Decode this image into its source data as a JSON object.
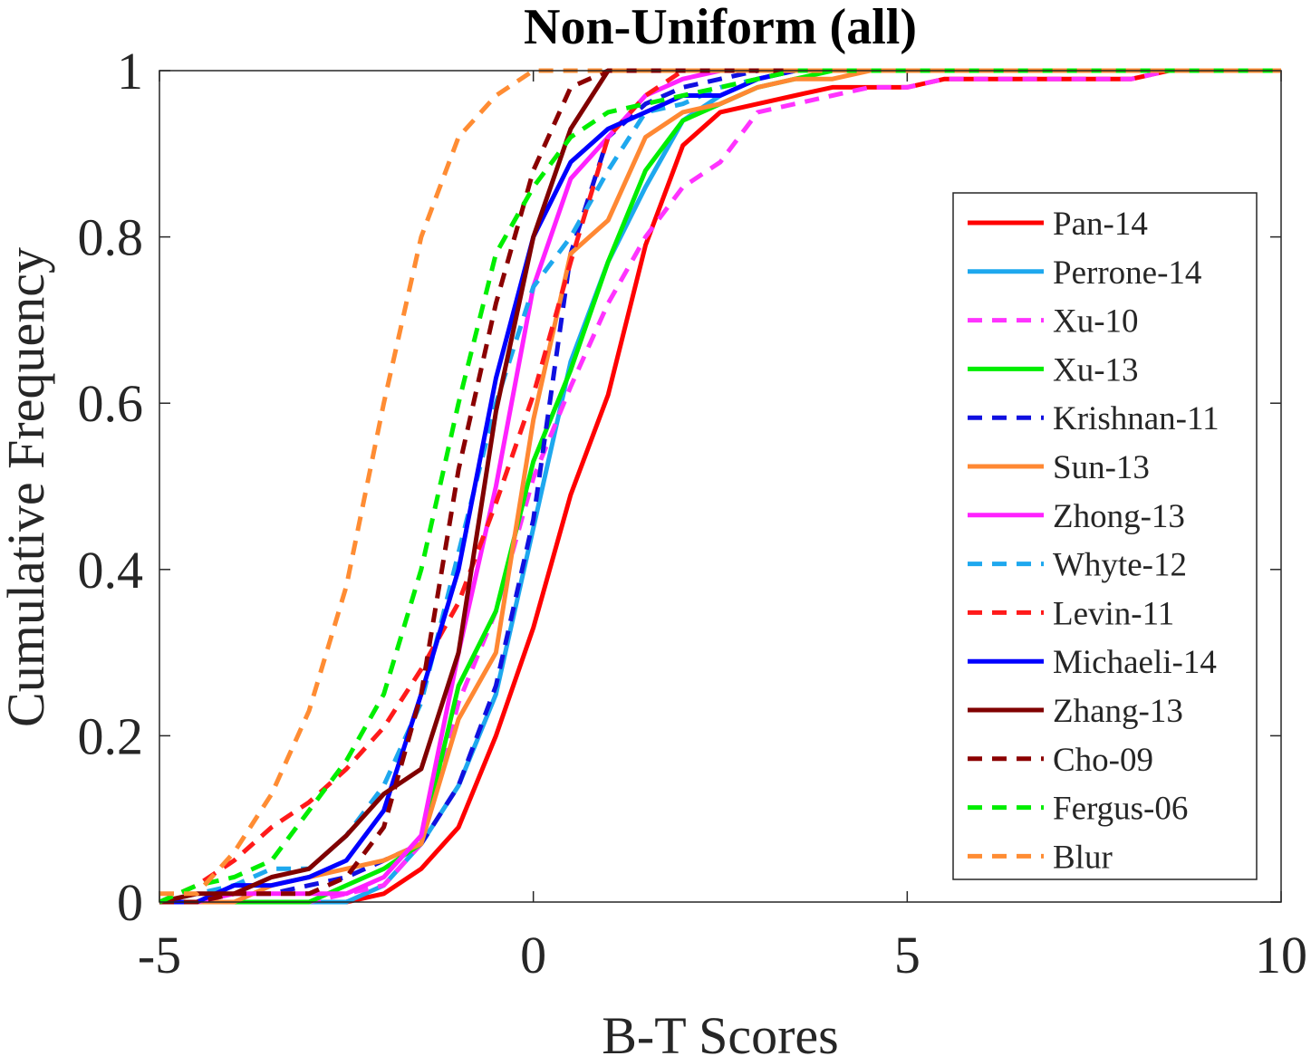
{
  "chart_data": {
    "type": "line",
    "title": "Non-Uniform (all)",
    "xlabel": "B-T Scores",
    "ylabel": "Cumulative Frequency",
    "xlim": [
      -5,
      10
    ],
    "ylim": [
      0,
      1
    ],
    "xticks": [
      -5,
      0,
      5,
      10
    ],
    "xtick_labels": [
      "-5",
      "0",
      "5",
      "10"
    ],
    "yticks": [
      0,
      0.2,
      0.4,
      0.6,
      0.8,
      1
    ],
    "ytick_labels": [
      "0",
      "0.2",
      "0.4",
      "0.6",
      "0.8",
      "1"
    ],
    "grid": false,
    "legend_position": "right",
    "series": [
      {
        "name": "Pan-14",
        "color": "#ff0000",
        "dash": "solid",
        "x": [
          -5,
          -4.5,
          -4,
          -3.5,
          -3,
          -2.5,
          -2,
          -1.5,
          -1,
          -0.5,
          0,
          0.5,
          1,
          1.5,
          2,
          2.5,
          3,
          3.5,
          4,
          4.5,
          5,
          5.5,
          6,
          6.5,
          7,
          7.5,
          8,
          8.5,
          9,
          10
        ],
        "y": [
          0,
          0,
          0,
          0,
          0,
          0,
          0.01,
          0.04,
          0.09,
          0.2,
          0.33,
          0.49,
          0.61,
          0.79,
          0.91,
          0.95,
          0.96,
          0.97,
          0.98,
          0.98,
          0.98,
          0.99,
          0.99,
          0.99,
          0.99,
          0.99,
          0.99,
          1,
          1,
          1
        ]
      },
      {
        "name": "Perrone-14",
        "color": "#1ea8ee",
        "dash": "solid",
        "x": [
          -5,
          -4.5,
          -4,
          -3.5,
          -3,
          -2.5,
          -2,
          -1.5,
          -1,
          -0.5,
          0,
          0.5,
          1,
          1.5,
          2,
          2.5,
          3,
          3.5,
          4,
          10
        ],
        "y": [
          0,
          0,
          0,
          0,
          0,
          0,
          0.02,
          0.07,
          0.14,
          0.25,
          0.45,
          0.65,
          0.77,
          0.86,
          0.94,
          0.97,
          0.99,
          1,
          1,
          1
        ]
      },
      {
        "name": "Xu-10",
        "color": "#ff33ff",
        "dash": "dashed",
        "x": [
          -5,
          -4.5,
          -4,
          -3.5,
          -3,
          -2.5,
          -2,
          -1.5,
          -1,
          -0.5,
          0,
          0.5,
          1,
          1.5,
          2,
          2.5,
          3,
          3.5,
          4,
          4.5,
          5,
          5.5,
          6,
          6.5,
          7,
          7.5,
          8,
          8.5,
          9,
          10
        ],
        "y": [
          0,
          0,
          0,
          0,
          0,
          0.01,
          0.02,
          0.07,
          0.24,
          0.35,
          0.51,
          0.62,
          0.72,
          0.8,
          0.86,
          0.89,
          0.95,
          0.96,
          0.97,
          0.98,
          0.98,
          0.99,
          0.99,
          0.99,
          0.99,
          0.99,
          0.99,
          1,
          1,
          1
        ]
      },
      {
        "name": "Xu-13",
        "color": "#00ee00",
        "dash": "solid",
        "x": [
          -5,
          -4.5,
          -4,
          -3.5,
          -3,
          -2.5,
          -2,
          -1.5,
          -1,
          -0.5,
          0,
          0.5,
          1,
          1.5,
          2,
          2.5,
          3,
          3.5,
          4,
          10
        ],
        "y": [
          0,
          0,
          0,
          0,
          0,
          0.02,
          0.04,
          0.07,
          0.26,
          0.35,
          0.53,
          0.64,
          0.77,
          0.88,
          0.94,
          0.96,
          0.98,
          0.99,
          1,
          1
        ]
      },
      {
        "name": "Krishnan-11",
        "color": "#1010e0",
        "dash": "dashed",
        "x": [
          -5,
          -4.5,
          -4,
          -3.5,
          -3,
          -2.5,
          -2,
          -1.5,
          -1,
          -0.5,
          0,
          0.5,
          1,
          1.5,
          2,
          2.5,
          3,
          3.5,
          10
        ],
        "y": [
          0,
          0,
          0.01,
          0.01,
          0.02,
          0.03,
          0.05,
          0.07,
          0.14,
          0.26,
          0.46,
          0.78,
          0.92,
          0.96,
          0.98,
          0.99,
          1,
          1,
          1
        ]
      },
      {
        "name": "Sun-13",
        "color": "#ff8833",
        "dash": "solid",
        "x": [
          -5,
          -4.5,
          -4,
          -3.5,
          -3,
          -2.5,
          -2,
          -1.5,
          -1,
          -0.5,
          0,
          0.5,
          1,
          1.5,
          2,
          2.5,
          3,
          3.5,
          4,
          4.5,
          5,
          10
        ],
        "y": [
          0,
          0,
          0,
          0.02,
          0.03,
          0.04,
          0.05,
          0.07,
          0.22,
          0.3,
          0.58,
          0.78,
          0.82,
          0.92,
          0.95,
          0.96,
          0.98,
          0.99,
          0.99,
          1,
          1,
          1
        ]
      },
      {
        "name": "Zhong-13",
        "color": "#ff22ff",
        "dash": "solid",
        "x": [
          -5,
          -4.5,
          -4,
          -3.5,
          -3,
          -2.5,
          -2,
          -1.5,
          -1,
          -0.5,
          0,
          0.5,
          1,
          1.5,
          2,
          2.5,
          3,
          10
        ],
        "y": [
          0,
          0,
          0.01,
          0.01,
          0.01,
          0.01,
          0.03,
          0.08,
          0.3,
          0.5,
          0.74,
          0.87,
          0.92,
          0.97,
          0.99,
          1,
          1,
          1
        ]
      },
      {
        "name": "Whyte-12",
        "color": "#1ea8ee",
        "dash": "dashed",
        "x": [
          -5,
          -4.5,
          -4,
          -3.5,
          -3,
          -2.5,
          -2,
          -1.5,
          -1,
          -0.5,
          0,
          0.5,
          1,
          1.5,
          2,
          2.5,
          3,
          3.5,
          10
        ],
        "y": [
          0,
          0.01,
          0.02,
          0.04,
          0.04,
          0.08,
          0.14,
          0.24,
          0.42,
          0.6,
          0.74,
          0.8,
          0.88,
          0.95,
          0.96,
          0.98,
          0.99,
          1,
          1
        ]
      },
      {
        "name": "Levin-11",
        "color": "#ff1a1a",
        "dash": "dashed",
        "x": [
          -5,
          -4.5,
          -4,
          -3.5,
          -3,
          -2.5,
          -2,
          -1.5,
          -1,
          -0.5,
          0,
          0.5,
          1,
          1.5,
          2,
          10
        ],
        "y": [
          0,
          0.02,
          0.05,
          0.09,
          0.12,
          0.16,
          0.21,
          0.28,
          0.36,
          0.48,
          0.61,
          0.77,
          0.92,
          0.97,
          1,
          1
        ]
      },
      {
        "name": "Michaeli-14",
        "color": "#0000ff",
        "dash": "solid",
        "x": [
          -5,
          -4.5,
          -4,
          -3.5,
          -3,
          -2.5,
          -2,
          -1.5,
          -1,
          -0.5,
          0,
          0.5,
          1,
          1.5,
          2,
          2.5,
          3,
          3.5,
          10
        ],
        "y": [
          0,
          0,
          0.02,
          0.02,
          0.03,
          0.05,
          0.11,
          0.25,
          0.4,
          0.63,
          0.8,
          0.89,
          0.93,
          0.95,
          0.97,
          0.97,
          0.99,
          1,
          1
        ]
      },
      {
        "name": "Zhang-13",
        "color": "#800000",
        "dash": "solid",
        "x": [
          -5,
          -4.5,
          -4,
          -3.5,
          -3,
          -2.5,
          -2,
          -1.5,
          -1,
          -0.5,
          0,
          0.5,
          1,
          10
        ],
        "y": [
          0,
          0.01,
          0.01,
          0.03,
          0.04,
          0.08,
          0.13,
          0.16,
          0.3,
          0.59,
          0.8,
          0.93,
          1,
          1
        ]
      },
      {
        "name": "Cho-09",
        "color": "#8b0000",
        "dash": "dashed",
        "x": [
          -5,
          -4.5,
          -4,
          -3.5,
          -3,
          -2.5,
          -2,
          -1.5,
          -1,
          -0.5,
          0,
          0.5,
          1,
          10
        ],
        "y": [
          0,
          0,
          0.01,
          0.01,
          0.01,
          0.03,
          0.09,
          0.25,
          0.52,
          0.72,
          0.88,
          0.98,
          1,
          1
        ]
      },
      {
        "name": "Fergus-06",
        "color": "#00ee00",
        "dash": "dashed",
        "x": [
          -5,
          -4.5,
          -4,
          -3.5,
          -3,
          -2.5,
          -2,
          -1.5,
          -1,
          -0.5,
          0,
          0.5,
          1,
          1.5,
          2,
          2.5,
          3,
          3.5,
          10
        ],
        "y": [
          0,
          0.02,
          0.03,
          0.05,
          0.11,
          0.17,
          0.25,
          0.4,
          0.6,
          0.78,
          0.86,
          0.92,
          0.95,
          0.96,
          0.97,
          0.98,
          0.99,
          1,
          1
        ]
      },
      {
        "name": "Blur",
        "color": "#ff8c33",
        "dash": "dashed",
        "x": [
          -5,
          -4.5,
          -4,
          -3.5,
          -3,
          -2.5,
          -2,
          -1.5,
          -1,
          -0.5,
          0,
          10
        ],
        "y": [
          0.01,
          0.01,
          0.06,
          0.13,
          0.23,
          0.38,
          0.6,
          0.8,
          0.92,
          0.97,
          1,
          1
        ]
      }
    ]
  }
}
